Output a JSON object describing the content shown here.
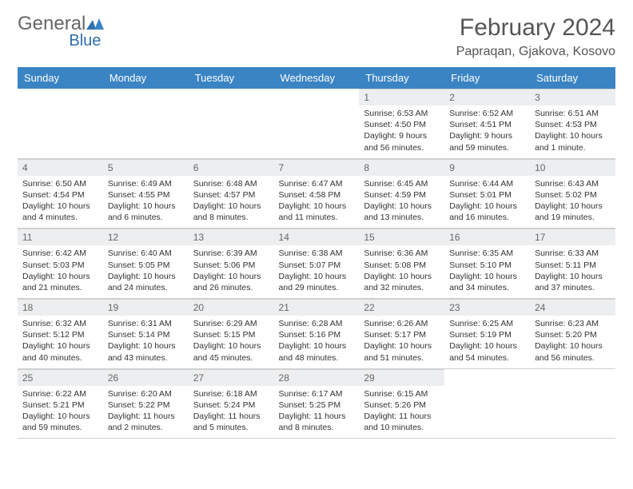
{
  "logo": {
    "word1": "General",
    "word2": "Blue"
  },
  "title": "February 2024",
  "location": "Papraqan, Gjakova, Kosovo",
  "colors": {
    "header_bg": "#3b84c4",
    "header_text": "#ffffff",
    "daynum_bg": "#eceeef",
    "logo_gray": "#666666",
    "logo_blue": "#2f6fad",
    "title_color": "#555555"
  },
  "weekdays": [
    "Sunday",
    "Monday",
    "Tuesday",
    "Wednesday",
    "Thursday",
    "Friday",
    "Saturday"
  ],
  "cells": [
    null,
    null,
    null,
    null,
    {
      "n": "1",
      "sr": "Sunrise: 6:53 AM",
      "ss": "Sunset: 4:50 PM",
      "dl": "Daylight: 9 hours and 56 minutes."
    },
    {
      "n": "2",
      "sr": "Sunrise: 6:52 AM",
      "ss": "Sunset: 4:51 PM",
      "dl": "Daylight: 9 hours and 59 minutes."
    },
    {
      "n": "3",
      "sr": "Sunrise: 6:51 AM",
      "ss": "Sunset: 4:53 PM",
      "dl": "Daylight: 10 hours and 1 minute."
    },
    {
      "n": "4",
      "sr": "Sunrise: 6:50 AM",
      "ss": "Sunset: 4:54 PM",
      "dl": "Daylight: 10 hours and 4 minutes."
    },
    {
      "n": "5",
      "sr": "Sunrise: 6:49 AM",
      "ss": "Sunset: 4:55 PM",
      "dl": "Daylight: 10 hours and 6 minutes."
    },
    {
      "n": "6",
      "sr": "Sunrise: 6:48 AM",
      "ss": "Sunset: 4:57 PM",
      "dl": "Daylight: 10 hours and 8 minutes."
    },
    {
      "n": "7",
      "sr": "Sunrise: 6:47 AM",
      "ss": "Sunset: 4:58 PM",
      "dl": "Daylight: 10 hours and 11 minutes."
    },
    {
      "n": "8",
      "sr": "Sunrise: 6:45 AM",
      "ss": "Sunset: 4:59 PM",
      "dl": "Daylight: 10 hours and 13 minutes."
    },
    {
      "n": "9",
      "sr": "Sunrise: 6:44 AM",
      "ss": "Sunset: 5:01 PM",
      "dl": "Daylight: 10 hours and 16 minutes."
    },
    {
      "n": "10",
      "sr": "Sunrise: 6:43 AM",
      "ss": "Sunset: 5:02 PM",
      "dl": "Daylight: 10 hours and 19 minutes."
    },
    {
      "n": "11",
      "sr": "Sunrise: 6:42 AM",
      "ss": "Sunset: 5:03 PM",
      "dl": "Daylight: 10 hours and 21 minutes."
    },
    {
      "n": "12",
      "sr": "Sunrise: 6:40 AM",
      "ss": "Sunset: 5:05 PM",
      "dl": "Daylight: 10 hours and 24 minutes."
    },
    {
      "n": "13",
      "sr": "Sunrise: 6:39 AM",
      "ss": "Sunset: 5:06 PM",
      "dl": "Daylight: 10 hours and 26 minutes."
    },
    {
      "n": "14",
      "sr": "Sunrise: 6:38 AM",
      "ss": "Sunset: 5:07 PM",
      "dl": "Daylight: 10 hours and 29 minutes."
    },
    {
      "n": "15",
      "sr": "Sunrise: 6:36 AM",
      "ss": "Sunset: 5:08 PM",
      "dl": "Daylight: 10 hours and 32 minutes."
    },
    {
      "n": "16",
      "sr": "Sunrise: 6:35 AM",
      "ss": "Sunset: 5:10 PM",
      "dl": "Daylight: 10 hours and 34 minutes."
    },
    {
      "n": "17",
      "sr": "Sunrise: 6:33 AM",
      "ss": "Sunset: 5:11 PM",
      "dl": "Daylight: 10 hours and 37 minutes."
    },
    {
      "n": "18",
      "sr": "Sunrise: 6:32 AM",
      "ss": "Sunset: 5:12 PM",
      "dl": "Daylight: 10 hours and 40 minutes."
    },
    {
      "n": "19",
      "sr": "Sunrise: 6:31 AM",
      "ss": "Sunset: 5:14 PM",
      "dl": "Daylight: 10 hours and 43 minutes."
    },
    {
      "n": "20",
      "sr": "Sunrise: 6:29 AM",
      "ss": "Sunset: 5:15 PM",
      "dl": "Daylight: 10 hours and 45 minutes."
    },
    {
      "n": "21",
      "sr": "Sunrise: 6:28 AM",
      "ss": "Sunset: 5:16 PM",
      "dl": "Daylight: 10 hours and 48 minutes."
    },
    {
      "n": "22",
      "sr": "Sunrise: 6:26 AM",
      "ss": "Sunset: 5:17 PM",
      "dl": "Daylight: 10 hours and 51 minutes."
    },
    {
      "n": "23",
      "sr": "Sunrise: 6:25 AM",
      "ss": "Sunset: 5:19 PM",
      "dl": "Daylight: 10 hours and 54 minutes."
    },
    {
      "n": "24",
      "sr": "Sunrise: 6:23 AM",
      "ss": "Sunset: 5:20 PM",
      "dl": "Daylight: 10 hours and 56 minutes."
    },
    {
      "n": "25",
      "sr": "Sunrise: 6:22 AM",
      "ss": "Sunset: 5:21 PM",
      "dl": "Daylight: 10 hours and 59 minutes."
    },
    {
      "n": "26",
      "sr": "Sunrise: 6:20 AM",
      "ss": "Sunset: 5:22 PM",
      "dl": "Daylight: 11 hours and 2 minutes."
    },
    {
      "n": "27",
      "sr": "Sunrise: 6:18 AM",
      "ss": "Sunset: 5:24 PM",
      "dl": "Daylight: 11 hours and 5 minutes."
    },
    {
      "n": "28",
      "sr": "Sunrise: 6:17 AM",
      "ss": "Sunset: 5:25 PM",
      "dl": "Daylight: 11 hours and 8 minutes."
    },
    {
      "n": "29",
      "sr": "Sunrise: 6:15 AM",
      "ss": "Sunset: 5:26 PM",
      "dl": "Daylight: 11 hours and 10 minutes."
    },
    null,
    null
  ]
}
